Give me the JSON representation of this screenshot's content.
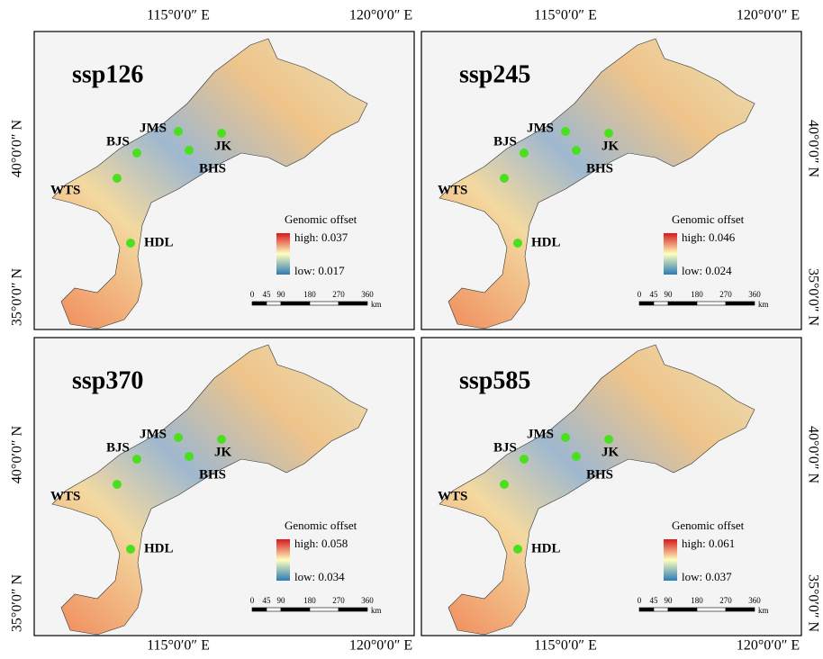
{
  "axes": {
    "lon": [
      "115°0′0″ E",
      "120°0′0″ E"
    ],
    "lat": [
      "40°0′0″ N",
      "35°0′0″ N"
    ]
  },
  "panels": [
    {
      "title": "ssp126",
      "legend": {
        "title": "Genomic offset",
        "high": "high: 0.037",
        "low": "low: 0.017"
      }
    },
    {
      "title": "ssp245",
      "legend": {
        "title": "Genomic offset",
        "high": "high: 0.046",
        "low": "low: 0.024"
      }
    },
    {
      "title": "ssp370",
      "legend": {
        "title": "Genomic offset",
        "high": "high: 0.058",
        "low": "low: 0.034"
      }
    },
    {
      "title": "ssp585",
      "legend": {
        "title": "Genomic offset",
        "high": "high: 0.061",
        "low": "low: 0.037"
      }
    }
  ],
  "sites": [
    "JMS",
    "BJS",
    "JK",
    "BHS",
    "WTS",
    "HDL"
  ],
  "scale": {
    "ticks": [
      "0",
      "45",
      "90",
      "180",
      "270",
      "360"
    ],
    "unit": "km"
  }
}
